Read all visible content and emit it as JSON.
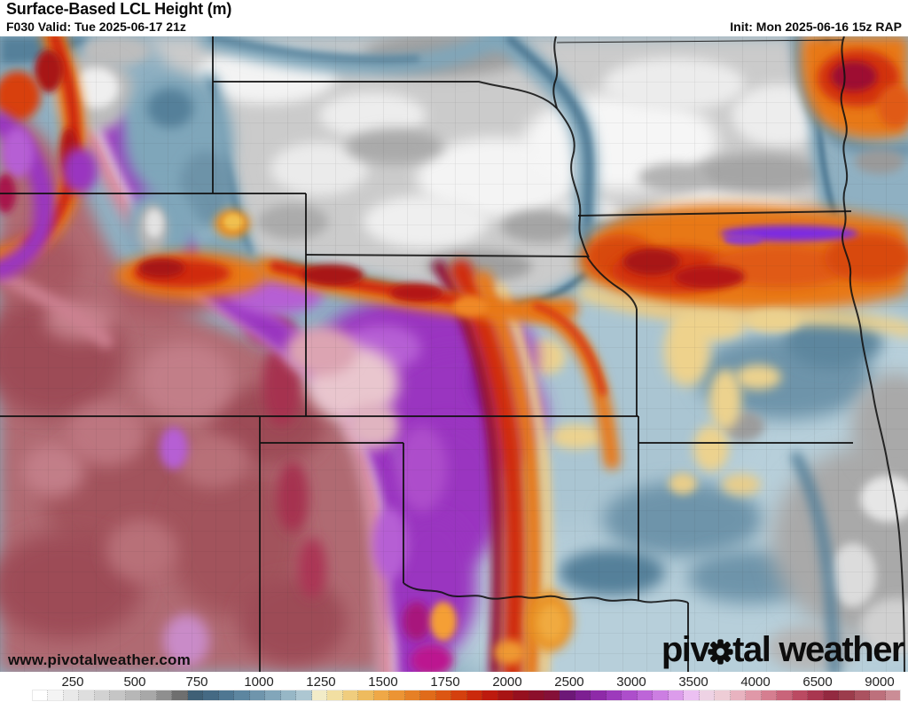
{
  "header": {
    "title": "Surface-Based LCL Height (m)",
    "valid_info": "F030 Valid: Tue 2025-06-17 21z",
    "init_info": "Init: Mon 2025-06-16 15z RAP"
  },
  "map": {
    "watermark": "www.pivotalweather.com",
    "logo": {
      "part1": "piv",
      "part2": "tal",
      "part3": "weather",
      "gear_icon": "gear-icon"
    }
  },
  "colorbar": {
    "unit": "m",
    "labels": [
      "250",
      "500",
      "750",
      "1000",
      "1250",
      "1500",
      "1750",
      "2000",
      "2500",
      "3000",
      "3500",
      "4000",
      "6500",
      "9000"
    ],
    "label_positions_pct": [
      4.7,
      11.86,
      19.02,
      26.18,
      33.33,
      40.49,
      47.65,
      54.81,
      61.96,
      69.12,
      76.28,
      83.44,
      90.6,
      97.75
    ],
    "palette": [
      "#ffffff",
      "#f4f4f4",
      "#e9e9e9",
      "#dedede",
      "#d2d2d2",
      "#c5c5c5",
      "#b7b7b7",
      "#a8a8a8",
      "#8f8f8f",
      "#6f6f6f",
      "#3f6076",
      "#456a84",
      "#4f7792",
      "#5d86a0",
      "#6f95ac",
      "#82a6ba",
      "#97b7c6",
      "#adc7d2",
      "#f2ecc8",
      "#f2dfa2",
      "#f0cd7e",
      "#eebb5e",
      "#efa847",
      "#ec9434",
      "#e68026",
      "#e06b1a",
      "#dc5613",
      "#d4400e",
      "#cb2a0c",
      "#bd1a0e",
      "#a81414",
      "#96101f",
      "#8c0f2b",
      "#851038",
      "#6d1877",
      "#7d1f92",
      "#8e2aa8",
      "#9d3abc",
      "#ad4ecb",
      "#bd65d8",
      "#cc7ee2",
      "#dc9ceb",
      "#ecc0f2",
      "#eed2e4",
      "#eecdd6",
      "#e8b3c0",
      "#e098a8",
      "#d57e90",
      "#c9647a",
      "#bb4a62",
      "#a93650",
      "#932940",
      "#9c3c4c",
      "#ab5260",
      "#bd707c",
      "#cb8d96"
    ],
    "speckle_from_index": 53
  },
  "colors": {
    "map_base_blue": "#8fb0c2",
    "low_gray": "#cbcbcb",
    "band_orange": "#e87818",
    "band_red": "#d02a10",
    "band_purple": "#9a35c0",
    "high_rose": "#b06a72",
    "text": "#0a0a0a"
  }
}
